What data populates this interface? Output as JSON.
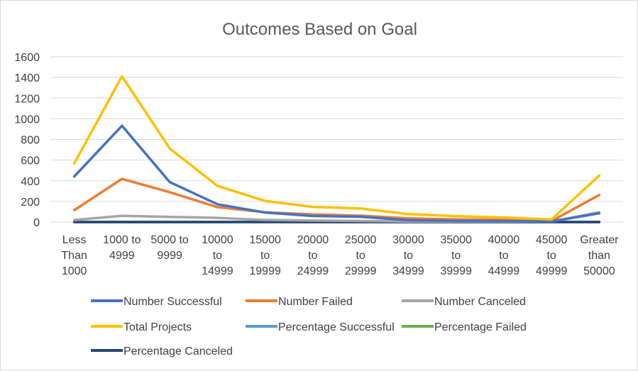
{
  "chart_data": {
    "type": "line",
    "title": "Outcomes Based on Goal",
    "xlabel": "",
    "ylabel": "",
    "ylim": [
      0,
      1600
    ],
    "y_ticks": [
      "0",
      "200",
      "400",
      "600",
      "800",
      "1000",
      "1200",
      "1400",
      "1600"
    ],
    "grid": true,
    "legend_position": "bottom",
    "categories": [
      "Less Than 1000",
      "1000 to 4999",
      "5000 to 9999",
      "10000 to 14999",
      "15000 to 19999",
      "20000 to 24999",
      "25000 to 29999",
      "30000 to 34999",
      "35000 to 39999",
      "40000 to 44999",
      "45000 to 49999",
      "Greater than 50000"
    ],
    "category_lines": [
      [
        "Less",
        "Than",
        "1000"
      ],
      [
        "1000 to",
        "4999"
      ],
      [
        "5000 to",
        "9999"
      ],
      [
        "10000",
        "to",
        "14999"
      ],
      [
        "15000",
        "to",
        "19999"
      ],
      [
        "20000",
        "to",
        "24999"
      ],
      [
        "25000",
        "to",
        "29999"
      ],
      [
        "30000",
        "to",
        "34999"
      ],
      [
        "35000",
        "to",
        "39999"
      ],
      [
        "40000",
        "to",
        "44999"
      ],
      [
        "45000",
        "to",
        "49999"
      ],
      [
        "Greater",
        "than",
        "50000"
      ]
    ],
    "series": [
      {
        "name": "Number Successful",
        "color": "#4472C4",
        "values": [
          441,
          932,
          387,
          172,
          92,
          58,
          51,
          18,
          11,
          10,
          5,
          85
        ]
      },
      {
        "name": "Number Failed",
        "color": "#ED7D31",
        "values": [
          115,
          418,
          289,
          144,
          94,
          74,
          62,
          36,
          26,
          23,
          10,
          262
        ]
      },
      {
        "name": "Number Canceled",
        "color": "#A5A5A5",
        "values": [
          20,
          60,
          50,
          40,
          20,
          15,
          10,
          5,
          5,
          5,
          5,
          95
        ]
      },
      {
        "name": "Total Projects",
        "color": "#FFC000",
        "values": [
          568,
          1410,
          712,
          350,
          204,
          147,
          131,
          76,
          57,
          45,
          25,
          450
        ]
      },
      {
        "name": "Percentage Successful",
        "color": "#5B9BD5",
        "values": [
          0.78,
          0.66,
          0.54,
          0.49,
          0.45,
          0.39,
          0.39,
          0.24,
          0.19,
          0.22,
          0.2,
          0.19
        ]
      },
      {
        "name": "Percentage Failed",
        "color": "#70AD47",
        "values": [
          0.2,
          0.3,
          0.41,
          0.41,
          0.46,
          0.5,
          0.47,
          0.47,
          0.46,
          0.51,
          0.4,
          0.58
        ]
      },
      {
        "name": "Percentage Canceled",
        "color": "#264478",
        "values": [
          0.02,
          0.04,
          0.05,
          0.1,
          0.09,
          0.11,
          0.14,
          0.29,
          0.35,
          0.27,
          0.4,
          0.23
        ]
      }
    ]
  }
}
